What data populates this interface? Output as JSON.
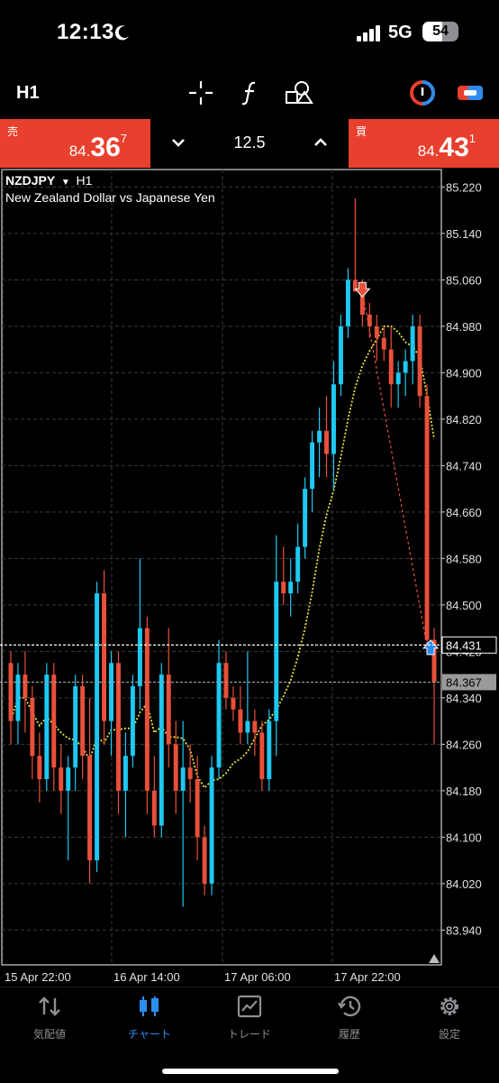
{
  "status": {
    "time": "12:13",
    "network": "5G",
    "battery": "54"
  },
  "toolbar": {
    "timeframe": "H1"
  },
  "quote": {
    "sell_label": "売",
    "sell_small": "84.",
    "sell_big": "36",
    "sell_sup": "7",
    "buy_label": "買",
    "buy_small": "84.",
    "buy_big": "43",
    "buy_sup": "1",
    "volume": "12.5"
  },
  "chart": {
    "symbol": "NZDJPY",
    "timeframe": "H1",
    "description": "New Zealand Dollar vs Japanese Yen",
    "price_labels": [
      "85.220",
      "85.140",
      "85.060",
      "84.980",
      "84.900",
      "84.820",
      "84.740",
      "84.660",
      "84.580",
      "84.500",
      "84.420",
      "84.340",
      "84.260",
      "84.180",
      "84.100",
      "84.020",
      "83.940"
    ],
    "ask_label": "84.431",
    "bid_label": "84.367",
    "time_labels": [
      "15 Apr 22:00",
      "16 Apr 14:00",
      "17 Apr 06:00",
      "17 Apr 22:00"
    ],
    "colors": {
      "bull": "#1ec8f2",
      "bear": "#e8503a",
      "ma": "#e8e33a",
      "grid": "#3a3a3a"
    }
  },
  "chart_data": {
    "type": "candlestick",
    "series": [
      {
        "name": "NZDJPY"
      }
    ],
    "ylim": [
      83.88,
      85.25
    ],
    "candles_ohlc": [
      [
        84.4,
        84.42,
        84.26,
        84.3
      ],
      [
        84.3,
        84.4,
        84.26,
        84.38
      ],
      [
        84.38,
        84.42,
        84.28,
        84.34
      ],
      [
        84.34,
        84.36,
        84.2,
        84.24
      ],
      [
        84.24,
        84.28,
        84.16,
        84.2
      ],
      [
        84.2,
        84.4,
        84.18,
        84.38
      ],
      [
        84.38,
        84.4,
        84.18,
        84.22
      ],
      [
        84.22,
        84.26,
        84.14,
        84.18
      ],
      [
        84.18,
        84.24,
        84.06,
        84.22
      ],
      [
        84.22,
        84.38,
        84.18,
        84.36
      ],
      [
        84.36,
        84.38,
        84.2,
        84.24
      ],
      [
        84.24,
        84.34,
        84.02,
        84.06
      ],
      [
        84.06,
        84.54,
        84.04,
        84.52
      ],
      [
        84.52,
        84.56,
        84.26,
        84.3
      ],
      [
        84.3,
        84.42,
        84.24,
        84.4
      ],
      [
        84.4,
        84.42,
        84.14,
        84.18
      ],
      [
        84.18,
        84.28,
        84.1,
        84.24
      ],
      [
        84.24,
        84.38,
        84.22,
        84.36
      ],
      [
        84.36,
        84.58,
        84.32,
        84.46
      ],
      [
        84.46,
        84.48,
        84.14,
        84.18
      ],
      [
        84.18,
        84.24,
        84.1,
        84.12
      ],
      [
        84.12,
        84.4,
        84.1,
        84.38
      ],
      [
        84.38,
        84.46,
        84.22,
        84.26
      ],
      [
        84.26,
        84.3,
        84.14,
        84.18
      ],
      [
        84.18,
        84.3,
        83.98,
        84.22
      ],
      [
        84.22,
        84.26,
        84.16,
        84.2
      ],
      [
        84.2,
        84.24,
        84.06,
        84.1
      ],
      [
        84.1,
        84.12,
        84.0,
        84.02
      ],
      [
        84.02,
        84.24,
        84.0,
        84.22
      ],
      [
        84.22,
        84.44,
        84.2,
        84.4
      ],
      [
        84.4,
        84.42,
        84.32,
        84.34
      ],
      [
        84.34,
        84.36,
        84.3,
        84.32
      ],
      [
        84.32,
        84.36,
        84.26,
        84.28
      ],
      [
        84.28,
        84.42,
        84.26,
        84.3
      ],
      [
        84.3,
        84.32,
        84.24,
        84.28
      ],
      [
        84.28,
        84.3,
        84.18,
        84.2
      ],
      [
        84.2,
        84.32,
        84.18,
        84.3
      ],
      [
        84.3,
        84.62,
        84.24,
        84.54
      ],
      [
        84.54,
        84.6,
        84.5,
        84.52
      ],
      [
        84.52,
        84.58,
        84.48,
        84.54
      ],
      [
        84.54,
        84.64,
        84.52,
        84.6
      ],
      [
        84.6,
        84.72,
        84.58,
        84.7
      ],
      [
        84.7,
        84.8,
        84.66,
        84.78
      ],
      [
        84.78,
        84.84,
        84.72,
        84.8
      ],
      [
        84.8,
        84.86,
        84.72,
        84.76
      ],
      [
        84.76,
        84.92,
        84.7,
        84.88
      ],
      [
        84.88,
        85.0,
        84.86,
        84.98
      ],
      [
        84.98,
        85.08,
        84.96,
        85.06
      ],
      [
        85.06,
        85.2,
        85.04,
        85.04
      ],
      [
        85.04,
        85.06,
        84.98,
        85.0
      ],
      [
        85.0,
        85.02,
        84.96,
        84.98
      ],
      [
        84.98,
        85.0,
        84.92,
        84.96
      ],
      [
        84.96,
        84.98,
        84.92,
        84.94
      ],
      [
        84.94,
        84.98,
        84.84,
        84.88
      ],
      [
        84.88,
        84.92,
        84.84,
        84.9
      ],
      [
        84.9,
        84.94,
        84.86,
        84.92
      ],
      [
        84.92,
        85.0,
        84.88,
        84.98
      ],
      [
        84.98,
        85.0,
        84.84,
        84.86
      ],
      [
        84.86,
        84.88,
        84.42,
        84.44
      ],
      [
        84.44,
        84.46,
        84.26,
        84.367
      ]
    ],
    "moving_average": "yellow dotted line",
    "ask_line": 84.431,
    "bid_line": 84.367,
    "markers": [
      "sell arrow near 85.04",
      "buy arrow near 84.43"
    ]
  },
  "tabs": [
    {
      "label": "気配値",
      "icon": "quotes-icon"
    },
    {
      "label": "チャート",
      "icon": "chart-icon"
    },
    {
      "label": "トレード",
      "icon": "trade-icon"
    },
    {
      "label": "履歴",
      "icon": "history-icon"
    },
    {
      "label": "設定",
      "icon": "settings-icon"
    }
  ]
}
